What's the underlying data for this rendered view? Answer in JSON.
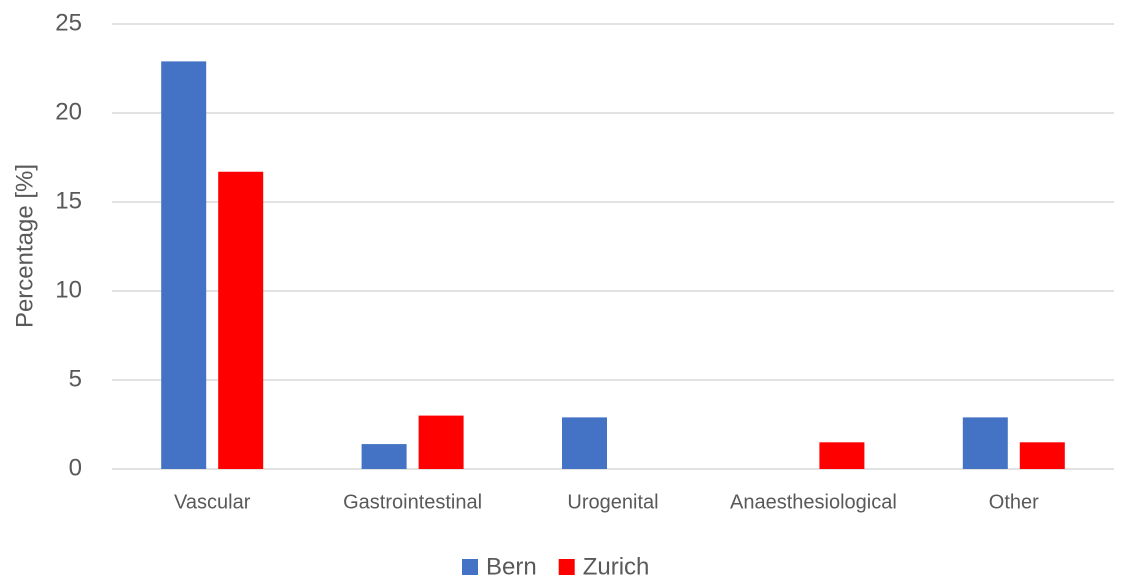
{
  "chart_data": {
    "type": "bar",
    "y_label": "Percentage [%]",
    "categories": [
      "Vascular",
      "Gastrointestinal",
      "Urogenital",
      "Anaesthesiological",
      "Other"
    ],
    "series": [
      {
        "name": "Bern",
        "color": "#4472c4",
        "values": [
          22.9,
          1.4,
          2.9,
          0,
          2.9
        ]
      },
      {
        "name": "Zurich",
        "color": "#ff0000",
        "values": [
          16.7,
          3.0,
          0,
          1.5,
          1.5
        ]
      }
    ],
    "ylim": [
      0,
      25
    ],
    "yticks": [
      0,
      5,
      10,
      15,
      20,
      25
    ],
    "grid": true,
    "legend": "bottom"
  }
}
